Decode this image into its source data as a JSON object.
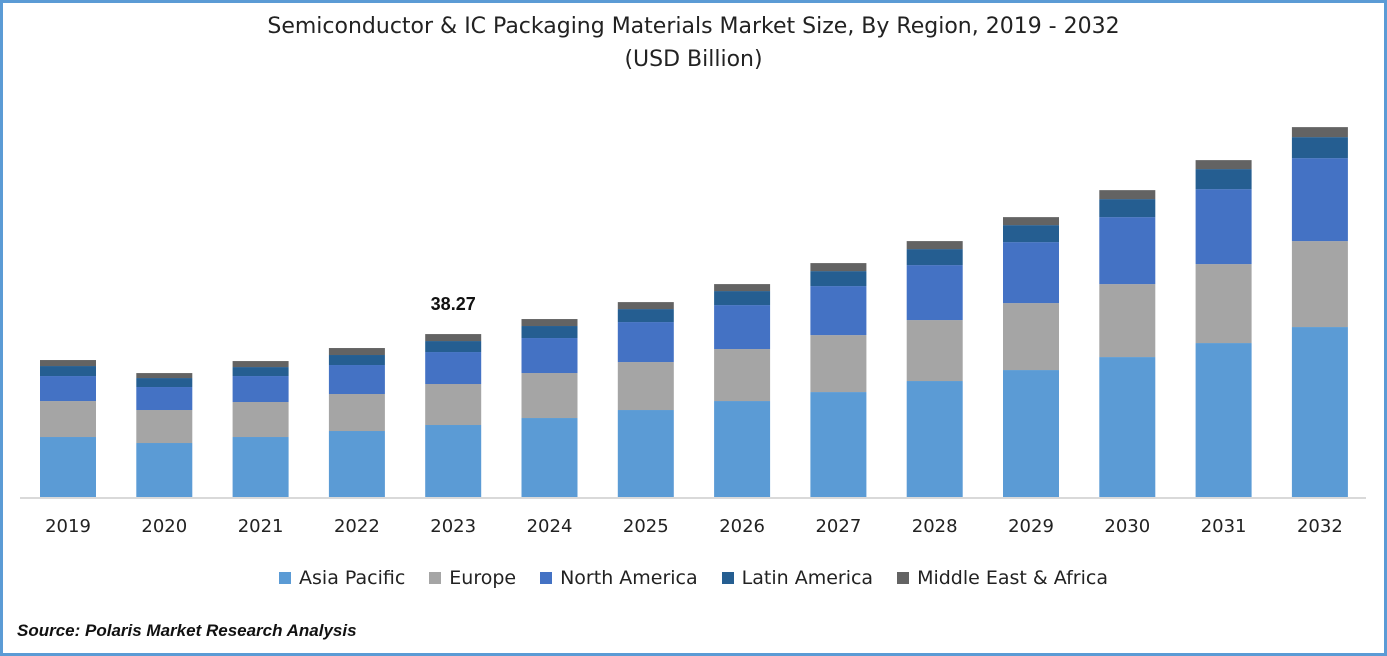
{
  "chart_data": {
    "type": "bar",
    "stacked": true,
    "title": "Semiconductor & IC Packaging Materials Market Size, By Region, 2019 - 2032",
    "subtitle": "(USD Billion)",
    "categories": [
      "2019",
      "2020",
      "2021",
      "2022",
      "2023",
      "2024",
      "2025",
      "2026",
      "2027",
      "2028",
      "2029",
      "2030",
      "2031",
      "2032"
    ],
    "series": [
      {
        "name": "Asia Pacific",
        "color": "#5b9bd5",
        "values": [
          14.09,
          12.68,
          14.09,
          15.5,
          16.91,
          18.55,
          20.43,
          22.54,
          24.65,
          27.24,
          29.82,
          32.87,
          36.16,
          39.92
        ]
      },
      {
        "name": "Europe",
        "color": "#a5a5a5",
        "values": [
          8.45,
          7.75,
          8.22,
          8.69,
          9.63,
          10.57,
          11.27,
          12.21,
          13.38,
          14.32,
          15.73,
          17.14,
          18.55,
          20.19
        ]
      },
      {
        "name": "North America",
        "color": "#4472c4",
        "values": [
          5.87,
          5.4,
          6.1,
          6.81,
          7.51,
          8.22,
          9.39,
          10.33,
          11.51,
          12.91,
          14.32,
          15.73,
          17.61,
          19.49
        ]
      },
      {
        "name": "Latin America",
        "color": "#255e91",
        "values": [
          2.35,
          2.11,
          2.11,
          2.35,
          2.58,
          2.82,
          3.05,
          3.29,
          3.52,
          3.76,
          3.99,
          4.23,
          4.7,
          4.93
        ]
      },
      {
        "name": "Middle East & Africa",
        "color": "#636363",
        "values": [
          1.41,
          1.17,
          1.41,
          1.64,
          1.64,
          1.64,
          1.64,
          1.64,
          1.88,
          1.88,
          1.88,
          2.11,
          2.11,
          2.35
        ]
      }
    ],
    "annotations": [
      {
        "category": "2023",
        "text": "38.27"
      }
    ],
    "ylim": [
      0,
      95.6
    ],
    "grid": false,
    "legend_position": "bottom",
    "xlabel": "",
    "ylabel": ""
  },
  "source": "Source: Polaris Market Research Analysis",
  "frame_color": "#5b9bd5"
}
